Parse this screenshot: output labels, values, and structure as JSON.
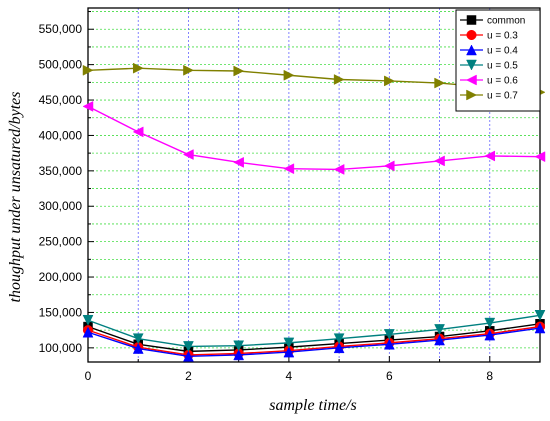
{
  "chart_data": {
    "type": "line",
    "title": "",
    "xlabel": "sample time/s",
    "ylabel": "thoughput under unsatured/bytes",
    "xlim": [
      0,
      9
    ],
    "ylim": [
      80000,
      580000
    ],
    "xticks": [
      0,
      2,
      4,
      6,
      8
    ],
    "yticks": [
      100000,
      150000,
      200000,
      250000,
      300000,
      350000,
      400000,
      450000,
      500000,
      550000
    ],
    "xtick_labels": [
      "0",
      "2",
      "4",
      "6",
      "8"
    ],
    "ytick_labels": [
      "100,000",
      "150,000",
      "200,000",
      "250,000",
      "300,000",
      "350,000",
      "400,000",
      "450,000",
      "500,000",
      "550,000"
    ],
    "grid": true,
    "legend_position": "top-right",
    "x": [
      0,
      1,
      2,
      3,
      4,
      5,
      6,
      7,
      8,
      9
    ],
    "series": [
      {
        "name": "common",
        "color": "#000000",
        "marker": "square",
        "values": [
          130000,
          105000,
          95000,
          97000,
          101000,
          106000,
          111000,
          116000,
          124000,
          134000
        ]
      },
      {
        "name": "u = 0.3",
        "color": "#ff0000",
        "marker": "circle",
        "values": [
          125000,
          101000,
          90000,
          92000,
          96000,
          102000,
          107000,
          113000,
          120000,
          130000
        ]
      },
      {
        "name": "u = 0.4",
        "color": "#0000ff",
        "marker": "triangle-up",
        "values": [
          122000,
          99000,
          88000,
          90000,
          94000,
          100000,
          105000,
          111000,
          118000,
          128000
        ]
      },
      {
        "name": "u = 0.5",
        "color": "#008080",
        "marker": "triangle-down",
        "values": [
          139000,
          113000,
          102000,
          103000,
          107000,
          113000,
          119000,
          126000,
          135000,
          146000
        ]
      },
      {
        "name": "u = 0.6",
        "color": "#ff00ff",
        "marker": "triangle-left",
        "values": [
          441000,
          405000,
          373000,
          362000,
          353000,
          352000,
          357000,
          364000,
          371000,
          370000
        ]
      },
      {
        "name": "u = 0.7",
        "color": "#808000",
        "marker": "triangle-right",
        "values": [
          492000,
          495000,
          492000,
          491000,
          485000,
          479000,
          477000,
          474000,
          468000,
          461000
        ]
      }
    ]
  }
}
